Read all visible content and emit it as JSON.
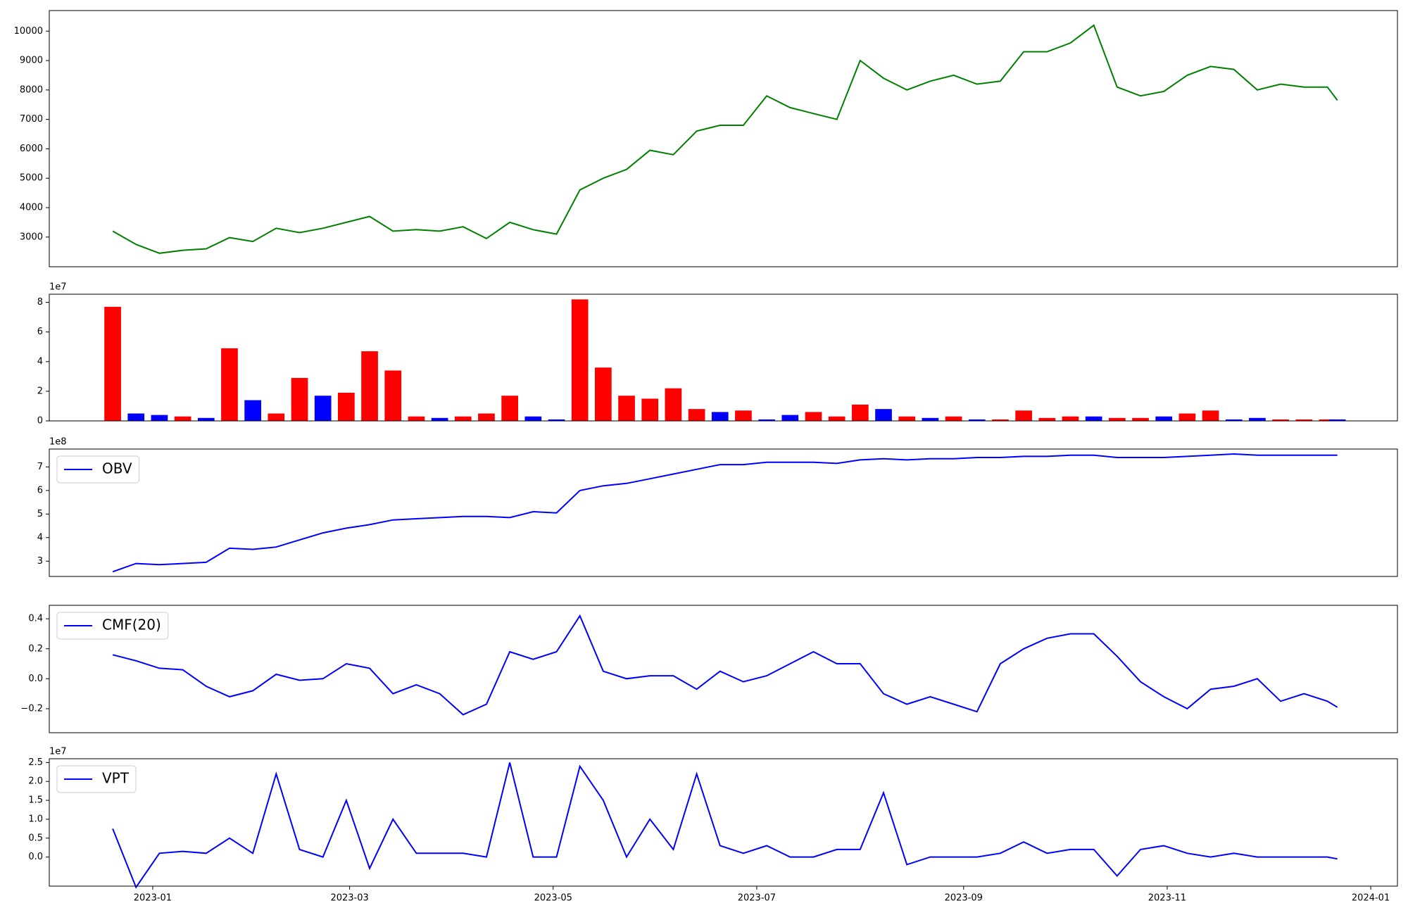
{
  "chart_data": [
    {
      "type": "line",
      "xlim": [
        "2022-12-01",
        "2024-01-09"
      ],
      "ylim": [
        1990,
        10700
      ],
      "yticks": [
        3000,
        4000,
        5000,
        6000,
        7000,
        8000,
        9000,
        10000
      ],
      "x": [
        "2022-12-20",
        "2022-12-27",
        "2023-01-03",
        "2023-01-10",
        "2023-01-17",
        "2023-01-24",
        "2023-01-31",
        "2023-02-07",
        "2023-02-14",
        "2023-02-21",
        "2023-02-28",
        "2023-03-07",
        "2023-03-14",
        "2023-03-21",
        "2023-03-28",
        "2023-04-04",
        "2023-04-11",
        "2023-04-18",
        "2023-04-25",
        "2023-05-02",
        "2023-05-09",
        "2023-05-16",
        "2023-05-23",
        "2023-05-30",
        "2023-06-06",
        "2023-06-13",
        "2023-06-20",
        "2023-06-27",
        "2023-07-04",
        "2023-07-11",
        "2023-07-18",
        "2023-07-25",
        "2023-08-01",
        "2023-08-08",
        "2023-08-15",
        "2023-08-22",
        "2023-08-29",
        "2023-09-05",
        "2023-09-12",
        "2023-09-19",
        "2023-09-26",
        "2023-10-03",
        "2023-10-10",
        "2023-10-17",
        "2023-10-24",
        "2023-10-31",
        "2023-11-07",
        "2023-11-14",
        "2023-11-21",
        "2023-11-28",
        "2023-12-05",
        "2023-12-12",
        "2023-12-19",
        "2023-12-22"
      ],
      "series": [
        {
          "color": "#008000",
          "values": [
            3200,
            2750,
            2450,
            2550,
            2600,
            2980,
            2850,
            3300,
            3150,
            3300,
            3500,
            3700,
            3200,
            3250,
            3200,
            3350,
            2950,
            3500,
            3250,
            3100,
            4600,
            5000,
            5300,
            5950,
            5800,
            6600,
            6800,
            6800,
            7800,
            7400,
            7200,
            7000,
            9000,
            8400,
            8000,
            8300,
            8500,
            8200,
            8300,
            9300,
            9300,
            9600,
            10200,
            8100,
            7800,
            7950,
            8500,
            8800,
            8700,
            8000,
            8200,
            8100,
            8100,
            7650
          ]
        }
      ]
    },
    {
      "type": "bar",
      "offset_label": "1e7",
      "xlim": [
        "2022-12-01",
        "2024-01-09"
      ],
      "ylim": [
        0,
        8.55
      ],
      "yticks": [
        0,
        2,
        4,
        6,
        8
      ],
      "x": [
        "2022-12-20",
        "2022-12-27",
        "2023-01-03",
        "2023-01-10",
        "2023-01-17",
        "2023-01-24",
        "2023-01-31",
        "2023-02-07",
        "2023-02-14",
        "2023-02-21",
        "2023-02-28",
        "2023-03-07",
        "2023-03-14",
        "2023-03-21",
        "2023-03-28",
        "2023-04-04",
        "2023-04-11",
        "2023-04-18",
        "2023-04-25",
        "2023-05-02",
        "2023-05-09",
        "2023-05-16",
        "2023-05-23",
        "2023-05-30",
        "2023-06-06",
        "2023-06-13",
        "2023-06-20",
        "2023-06-27",
        "2023-07-04",
        "2023-07-11",
        "2023-07-18",
        "2023-07-25",
        "2023-08-01",
        "2023-08-08",
        "2023-08-15",
        "2023-08-22",
        "2023-08-29",
        "2023-09-05",
        "2023-09-12",
        "2023-09-19",
        "2023-09-26",
        "2023-10-03",
        "2023-10-10",
        "2023-10-17",
        "2023-10-24",
        "2023-10-31",
        "2023-11-07",
        "2023-11-14",
        "2023-11-21",
        "2023-11-28",
        "2023-12-05",
        "2023-12-12",
        "2023-12-19",
        "2023-12-22"
      ],
      "series": [
        {
          "values": [
            7.7,
            0.5,
            0.4,
            0.3,
            0.2,
            4.9,
            1.4,
            0.5,
            2.9,
            1.7,
            1.9,
            4.7,
            3.4,
            0.3,
            0.2,
            0.3,
            0.5,
            1.7,
            0.3,
            0.1,
            8.2,
            3.6,
            1.7,
            1.5,
            2.2,
            0.8,
            0.6,
            0.7,
            0.1,
            0.4,
            0.6,
            0.3,
            1.1,
            0.8,
            0.3,
            0.2,
            0.3,
            0.1,
            0.1,
            0.7,
            0.2,
            0.3,
            0.3,
            0.2,
            0.2,
            0.3,
            0.5,
            0.7,
            0.1,
            0.2,
            0.1,
            0.1,
            0.1,
            0.1
          ],
          "colors": [
            "red",
            "blue",
            "blue",
            "red",
            "blue",
            "red",
            "blue",
            "red",
            "red",
            "blue",
            "red",
            "red",
            "red",
            "red",
            "blue",
            "red",
            "red",
            "red",
            "blue",
            "blue",
            "red",
            "red",
            "red",
            "red",
            "red",
            "red",
            "blue",
            "red",
            "blue",
            "blue",
            "red",
            "red",
            "red",
            "blue",
            "red",
            "blue",
            "red",
            "blue",
            "red",
            "red",
            "red",
            "red",
            "blue",
            "red",
            "red",
            "blue",
            "red",
            "red",
            "blue",
            "blue",
            "red",
            "red",
            "red",
            "blue"
          ]
        }
      ]
    },
    {
      "type": "line",
      "offset_label": "1e8",
      "legend": "upper left",
      "xlim": [
        "2022-12-01",
        "2024-01-09"
      ],
      "ylim": [
        2.35,
        7.76
      ],
      "yticks": [
        3,
        4,
        5,
        6,
        7
      ],
      "x": [
        "2022-12-20",
        "2022-12-27",
        "2023-01-03",
        "2023-01-10",
        "2023-01-17",
        "2023-01-24",
        "2023-01-31",
        "2023-02-07",
        "2023-02-14",
        "2023-02-21",
        "2023-02-28",
        "2023-03-07",
        "2023-03-14",
        "2023-03-21",
        "2023-03-28",
        "2023-04-04",
        "2023-04-11",
        "2023-04-18",
        "2023-04-25",
        "2023-05-02",
        "2023-05-09",
        "2023-05-16",
        "2023-05-23",
        "2023-05-30",
        "2023-06-06",
        "2023-06-13",
        "2023-06-20",
        "2023-06-27",
        "2023-07-04",
        "2023-07-11",
        "2023-07-18",
        "2023-07-25",
        "2023-08-01",
        "2023-08-08",
        "2023-08-15",
        "2023-08-22",
        "2023-08-29",
        "2023-09-05",
        "2023-09-12",
        "2023-09-19",
        "2023-09-26",
        "2023-10-03",
        "2023-10-10",
        "2023-10-17",
        "2023-10-24",
        "2023-10-31",
        "2023-11-07",
        "2023-11-14",
        "2023-11-21",
        "2023-11-28",
        "2023-12-05",
        "2023-12-12",
        "2023-12-19",
        "2023-12-22"
      ],
      "series": [
        {
          "name": "OBV",
          "color": "blue",
          "values": [
            2.55,
            2.9,
            2.85,
            2.9,
            2.95,
            3.55,
            3.5,
            3.6,
            3.9,
            4.2,
            4.4,
            4.55,
            4.75,
            4.8,
            4.85,
            4.9,
            4.9,
            4.85,
            5.1,
            5.05,
            6.0,
            6.2,
            6.3,
            6.5,
            6.7,
            6.9,
            7.1,
            7.1,
            7.2,
            7.2,
            7.2,
            7.15,
            7.3,
            7.35,
            7.3,
            7.35,
            7.35,
            7.4,
            7.4,
            7.45,
            7.45,
            7.5,
            7.5,
            7.4,
            7.4,
            7.4,
            7.45,
            7.5,
            7.55,
            7.5,
            7.5,
            7.5,
            7.5,
            7.5
          ]
        }
      ]
    },
    {
      "type": "line",
      "legend": "upper left",
      "xlim": [
        "2022-12-01",
        "2024-01-09"
      ],
      "ylim": [
        -0.36,
        0.49
      ],
      "yticks": [
        {
          "value": -0.2,
          "label": "−0.2"
        },
        {
          "value": 0,
          "label": "0.0"
        },
        0.2,
        0.4
      ],
      "x": [
        "2022-12-20",
        "2022-12-27",
        "2023-01-03",
        "2023-01-10",
        "2023-01-17",
        "2023-01-24",
        "2023-01-31",
        "2023-02-07",
        "2023-02-14",
        "2023-02-21",
        "2023-02-28",
        "2023-03-07",
        "2023-03-14",
        "2023-03-21",
        "2023-03-28",
        "2023-04-04",
        "2023-04-11",
        "2023-04-18",
        "2023-04-25",
        "2023-05-02",
        "2023-05-09",
        "2023-05-16",
        "2023-05-23",
        "2023-05-30",
        "2023-06-06",
        "2023-06-13",
        "2023-06-20",
        "2023-06-27",
        "2023-07-04",
        "2023-07-11",
        "2023-07-18",
        "2023-07-25",
        "2023-08-01",
        "2023-08-08",
        "2023-08-15",
        "2023-08-22",
        "2023-08-29",
        "2023-09-05",
        "2023-09-12",
        "2023-09-19",
        "2023-09-26",
        "2023-10-03",
        "2023-10-10",
        "2023-10-17",
        "2023-10-24",
        "2023-10-31",
        "2023-11-07",
        "2023-11-14",
        "2023-11-21",
        "2023-11-28",
        "2023-12-05",
        "2023-12-12",
        "2023-12-19",
        "2023-12-22"
      ],
      "series": [
        {
          "name": "CMF(20)",
          "color": "blue",
          "values": [
            0.16,
            0.12,
            0.07,
            0.06,
            -0.05,
            -0.12,
            -0.08,
            0.03,
            -0.01,
            0.0,
            0.1,
            0.07,
            -0.1,
            -0.04,
            -0.1,
            -0.24,
            -0.17,
            0.18,
            0.13,
            0.18,
            0.42,
            0.05,
            0.0,
            0.02,
            0.02,
            -0.07,
            0.05,
            -0.02,
            0.02,
            0.1,
            0.18,
            0.1,
            0.1,
            -0.1,
            -0.17,
            -0.12,
            -0.17,
            -0.22,
            0.1,
            0.2,
            0.27,
            0.3,
            0.3,
            0.15,
            -0.02,
            -0.12,
            -0.2,
            -0.07,
            -0.05,
            0.0,
            -0.15,
            -0.1,
            -0.15,
            -0.19
          ]
        }
      ]
    },
    {
      "type": "line",
      "offset_label": "1e7",
      "legend": "upper left",
      "xlim": [
        "2022-12-01",
        "2024-01-09"
      ],
      "ylim": [
        -0.77,
        2.6
      ],
      "yticks": [
        {
          "value": 0,
          "label": "0.0"
        },
        0.5,
        {
          "value": 1,
          "label": "1.0"
        },
        1.5,
        {
          "value": 2,
          "label": "2.0"
        },
        2.5
      ],
      "xticks": [
        {
          "value": "2023-01-01",
          "label": "2023-01"
        },
        {
          "value": "2023-03-01",
          "label": "2023-03"
        },
        {
          "value": "2023-05-01",
          "label": "2023-05"
        },
        {
          "value": "2023-07-01",
          "label": "2023-07"
        },
        {
          "value": "2023-09-01",
          "label": "2023-09"
        },
        {
          "value": "2023-11-01",
          "label": "2023-11"
        },
        {
          "value": "2024-01-01",
          "label": "2024-01"
        }
      ],
      "x": [
        "2022-12-20",
        "2022-12-27",
        "2023-01-03",
        "2023-01-10",
        "2023-01-17",
        "2023-01-24",
        "2023-01-31",
        "2023-02-07",
        "2023-02-14",
        "2023-02-21",
        "2023-02-28",
        "2023-03-07",
        "2023-03-14",
        "2023-03-21",
        "2023-03-28",
        "2023-04-04",
        "2023-04-11",
        "2023-04-18",
        "2023-04-25",
        "2023-05-02",
        "2023-05-09",
        "2023-05-16",
        "2023-05-23",
        "2023-05-30",
        "2023-06-06",
        "2023-06-13",
        "2023-06-20",
        "2023-06-27",
        "2023-07-04",
        "2023-07-11",
        "2023-07-18",
        "2023-07-25",
        "2023-08-01",
        "2023-08-08",
        "2023-08-15",
        "2023-08-22",
        "2023-08-29",
        "2023-09-05",
        "2023-09-12",
        "2023-09-19",
        "2023-09-26",
        "2023-10-03",
        "2023-10-10",
        "2023-10-17",
        "2023-10-24",
        "2023-10-31",
        "2023-11-07",
        "2023-11-14",
        "2023-11-21",
        "2023-11-28",
        "2023-12-05",
        "2023-12-12",
        "2023-12-19",
        "2023-12-22"
      ],
      "series": [
        {
          "name": "VPT",
          "color": "blue",
          "values": [
            0.75,
            -0.8,
            0.1,
            0.15,
            0.1,
            0.5,
            0.1,
            2.2,
            0.2,
            0.0,
            1.5,
            -0.3,
            1.0,
            0.1,
            0.1,
            0.1,
            0.0,
            2.5,
            0.0,
            0.0,
            2.4,
            1.5,
            0.0,
            1.0,
            0.2,
            2.2,
            0.3,
            0.1,
            0.3,
            0.0,
            0.0,
            0.2,
            0.2,
            1.7,
            -0.2,
            0.0,
            0.0,
            0.0,
            0.1,
            0.4,
            0.1,
            0.2,
            0.2,
            -0.5,
            0.2,
            0.3,
            0.1,
            0.0,
            0.1,
            0.0,
            0.0,
            0.0,
            0.0,
            -0.05
          ]
        }
      ]
    }
  ]
}
